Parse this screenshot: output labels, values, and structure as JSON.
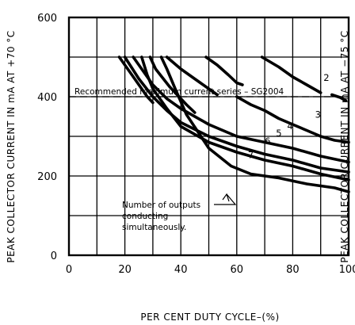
{
  "chart_data": {
    "type": "line",
    "xlabel": "PER CENT DUTY CYCLE–(%)",
    "ylabel_left": "PEAK COLLECTOR CURRENT IN mA AT +70 °C",
    "ylabel_right": "PEAK COLLECTOR CURRENT IN mA AT −75 °C",
    "xlim": [
      0,
      100
    ],
    "ylim": [
      0,
      600
    ],
    "x_ticks": [
      "0",
      "20",
      "40",
      "60",
      "80",
      "100"
    ],
    "y_ticks": [
      "0",
      "200",
      "400",
      "600"
    ],
    "x_ticks_values": [
      0,
      20,
      40,
      60,
      80,
      100
    ],
    "y_ticks_values": [
      0,
      200,
      400,
      600
    ],
    "grid": true,
    "reference_line": {
      "y": 400,
      "label": "Recommended maximum current series – SG2004"
    },
    "annotation": {
      "lines": [
        "Number of outputs",
        "conducting",
        "simultaneously."
      ]
    },
    "series": [
      {
        "name": "1",
        "points": [
          [
            18,
            500
          ],
          [
            22,
            460
          ],
          [
            26,
            420
          ],
          [
            28,
            400
          ],
          [
            30,
            385
          ]
        ]
      },
      {
        "name": "",
        "points": [
          [
            29,
            500
          ],
          [
            31,
            470
          ],
          [
            36,
            425
          ],
          [
            42,
            380
          ],
          [
            45,
            360
          ]
        ]
      },
      {
        "name": "",
        "points": [
          [
            35,
            500
          ],
          [
            40,
            470
          ],
          [
            45,
            445
          ],
          [
            50,
            420
          ],
          [
            53,
            405
          ]
        ]
      },
      {
        "name": "",
        "points": [
          [
            49,
            500
          ],
          [
            53,
            480
          ],
          [
            57,
            455
          ],
          [
            60,
            435
          ],
          [
            62,
            430
          ]
        ]
      },
      {
        "name": "2",
        "points": [
          [
            69,
            500
          ],
          [
            75,
            475
          ],
          [
            80,
            450
          ],
          [
            85,
            430
          ],
          [
            90,
            410
          ]
        ]
      },
      {
        "name": "",
        "points": [
          [
            94,
            405
          ],
          [
            97,
            398
          ],
          [
            99,
            390
          ]
        ]
      },
      {
        "name": "3",
        "points": [
          [
            60,
            400
          ],
          [
            65,
            380
          ],
          [
            70,
            365
          ],
          [
            75,
            345
          ],
          [
            80,
            330
          ],
          [
            85,
            315
          ],
          [
            90,
            300
          ],
          [
            95,
            290
          ],
          [
            100,
            285
          ]
        ]
      },
      {
        "name": "4",
        "points": [
          [
            23,
            500
          ],
          [
            30,
            430
          ],
          [
            35,
            395
          ],
          [
            40,
            370
          ],
          [
            50,
            330
          ],
          [
            60,
            300
          ],
          [
            70,
            285
          ],
          [
            80,
            270
          ],
          [
            90,
            250
          ],
          [
            100,
            235
          ]
        ]
      },
      {
        "name": "5",
        "points": [
          [
            20,
            500
          ],
          [
            25,
            445
          ],
          [
            30,
            400
          ],
          [
            35,
            365
          ],
          [
            40,
            335
          ],
          [
            50,
            300
          ],
          [
            60,
            275
          ],
          [
            70,
            255
          ],
          [
            80,
            240
          ],
          [
            90,
            220
          ],
          [
            100,
            210
          ]
        ]
      },
      {
        "name": "6",
        "points": [
          [
            26,
            500
          ],
          [
            28,
            455
          ],
          [
            30,
            420
          ],
          [
            35,
            370
          ],
          [
            40,
            325
          ],
          [
            50,
            285
          ],
          [
            60,
            260
          ],
          [
            70,
            240
          ],
          [
            80,
            225
          ],
          [
            90,
            205
          ],
          [
            100,
            190
          ]
        ]
      },
      {
        "name": "7",
        "points": [
          [
            33,
            500
          ],
          [
            35,
            470
          ],
          [
            38,
            420
          ],
          [
            42,
            355
          ],
          [
            50,
            270
          ],
          [
            58,
            225
          ],
          [
            65,
            205
          ],
          [
            75,
            195
          ],
          [
            85,
            180
          ],
          [
            95,
            170
          ],
          [
            100,
            160
          ]
        ]
      }
    ]
  }
}
